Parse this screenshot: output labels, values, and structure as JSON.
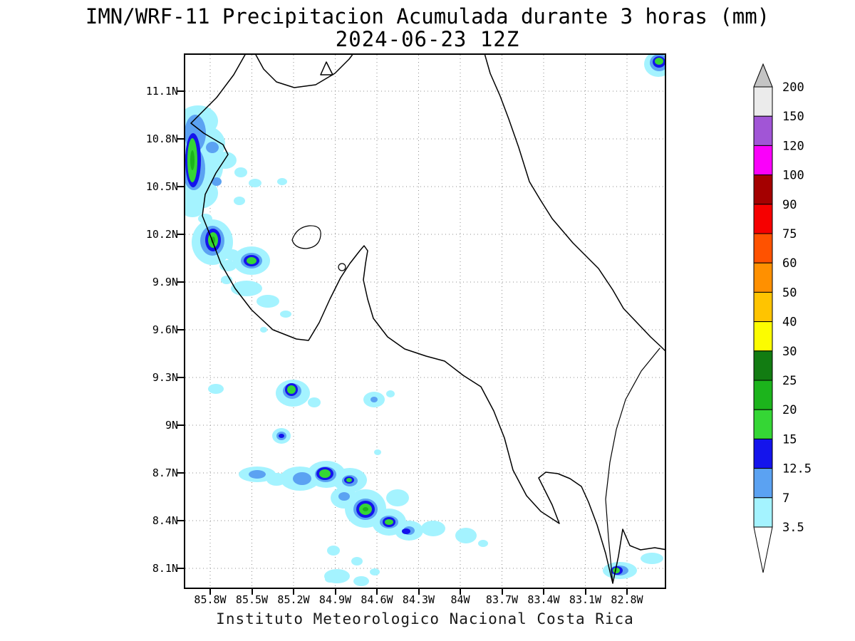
{
  "title": {
    "line1": "IMN/WRF-11 Precipitacion Acumulada durante 3 horas (mm)",
    "line2": "2024-06-23 12Z"
  },
  "footer": "Instituto Meteorologico Nacional Costa Rica",
  "axes": {
    "lat_labels": [
      "11.1N",
      "10.8N",
      "10.5N",
      "10.2N",
      "9.9N",
      "9.6N",
      "9.3N",
      "9N",
      "8.7N",
      "8.4N",
      "8.1N"
    ],
    "lon_labels": [
      "85.8W",
      "85.5W",
      "85.2W",
      "84.9W",
      "84.6W",
      "84.3W",
      "84W",
      "83.7W",
      "83.4W",
      "83.1W",
      "82.8W"
    ]
  },
  "colorbar": {
    "labels": [
      "200",
      "150",
      "120",
      "100",
      "90",
      "75",
      "60",
      "50",
      "40",
      "30",
      "25",
      "20",
      "15",
      "12.5",
      "7",
      "3.5"
    ],
    "cell_colors_top_to_bottom": [
      "#ebebeb",
      "#a155d6",
      "#fa00fa",
      "#a40000",
      "#f60000",
      "#ff5200",
      "#ff9000",
      "#ffc400",
      "#fcfc00",
      "#127c12",
      "#1cb41c",
      "#35d635",
      "#1414ec",
      "#5ba2f2",
      "#a4f3ff"
    ],
    "arrow_above_color": "#c4c4c4",
    "arrow_below_color": "#ffffff"
  },
  "map_colors": {
    "rain_3_5_mm": "#a4f3ff",
    "rain_7_mm": "#5ba2f2",
    "rain_12_5_mm": "#1414ec",
    "rain_15_mm": "#35d635",
    "rain_20_mm": "#1cb41c",
    "coastline": "#000000",
    "gridline": "#8c8c8c"
  },
  "precip_ellipses": {
    "mm_3_5": [
      [
        666,
        15,
        20,
        18
      ],
      [
        20,
        95,
        28,
        22
      ],
      [
        28,
        127,
        30,
        26
      ],
      [
        25,
        160,
        30,
        30
      ],
      [
        22,
        196,
        26,
        22
      ],
      [
        12,
        218,
        16,
        12
      ],
      [
        58,
        150,
        16,
        12
      ],
      [
        80,
        167,
        9,
        7
      ],
      [
        100,
        182,
        9,
        6
      ],
      [
        138,
        180,
        7,
        5
      ],
      [
        78,
        207,
        8,
        6
      ],
      [
        30,
        232,
        10,
        7
      ],
      [
        40,
        265,
        29,
        32
      ],
      [
        62,
        298,
        12,
        8
      ],
      [
        95,
        291,
        26,
        20
      ],
      [
        68,
        283,
        10,
        8
      ],
      [
        88,
        330,
        22,
        11
      ],
      [
        118,
        348,
        16,
        9
      ],
      [
        60,
        318,
        8,
        6
      ],
      [
        143,
        366,
        8,
        5
      ],
      [
        112,
        388,
        5,
        4
      ],
      [
        45,
        471,
        11,
        7
      ],
      [
        153,
        477,
        24,
        19
      ],
      [
        183,
        490,
        9,
        7
      ],
      [
        267,
        486,
        15,
        11
      ],
      [
        290,
        478,
        6,
        5
      ],
      [
        137,
        537,
        13,
        11
      ],
      [
        272,
        560,
        5,
        4
      ],
      [
        103,
        591,
        26,
        11
      ],
      [
        130,
        598,
        14,
        9
      ],
      [
        163,
        597,
        28,
        17
      ],
      [
        200,
        591,
        27,
        19
      ],
      [
        233,
        599,
        24,
        17
      ],
      [
        225,
        624,
        19,
        15
      ],
      [
        255,
        639,
        29,
        27
      ],
      [
        288,
        658,
        24,
        19
      ],
      [
        316,
        670,
        20,
        14
      ],
      [
        350,
        667,
        17,
        11
      ],
      [
        396,
        677,
        15,
        11
      ],
      [
        300,
        624,
        16,
        12
      ],
      [
        210,
        698,
        9,
        7
      ],
      [
        243,
        713,
        8,
        6
      ],
      [
        268,
        728,
        7,
        5
      ],
      [
        205,
        738,
        7,
        5
      ],
      [
        420,
        688,
        7,
        5
      ],
      [
        215,
        734,
        18,
        10
      ],
      [
        249,
        741,
        11,
        7
      ],
      [
        612,
        726,
        24,
        12
      ],
      [
        657,
        709,
        16,
        8
      ]
    ],
    "mm_7": [
      [
        667,
        13,
        13,
        12
      ],
      [
        16,
        112,
        15,
        26
      ],
      [
        14,
        162,
        16,
        30
      ],
      [
        40,
        132,
        9,
        8
      ],
      [
        46,
        180,
        7,
        6
      ],
      [
        40,
        263,
        17,
        21
      ],
      [
        95,
        291,
        15,
        11
      ],
      [
        152,
        474,
        13,
        11
      ],
      [
        137,
        537,
        7,
        6
      ],
      [
        267,
        486,
        5,
        4
      ],
      [
        103,
        591,
        12,
        6
      ],
      [
        166,
        597,
        13,
        9
      ],
      [
        199,
        591,
        15,
        11
      ],
      [
        233,
        600,
        11,
        8
      ],
      [
        225,
        622,
        8,
        6
      ],
      [
        255,
        640,
        17,
        15
      ],
      [
        288,
        658,
        13,
        9
      ],
      [
        316,
        670,
        8,
        6
      ],
      [
        611,
        726,
        13,
        7
      ]
    ],
    "mm_12_5": [
      [
        667,
        12,
        9,
        8
      ],
      [
        13,
        150,
        11,
        38
      ],
      [
        41,
        262,
        11,
        16
      ],
      [
        95,
        291,
        11,
        8
      ],
      [
        151,
        472,
        9,
        9
      ],
      [
        137,
        537,
        4,
        3
      ],
      [
        198,
        590,
        12,
        9
      ],
      [
        255,
        640,
        13,
        12
      ],
      [
        288,
        658,
        9,
        7
      ],
      [
        232,
        599,
        7,
        5
      ],
      [
        312,
        671,
        6,
        4
      ],
      [
        608,
        726,
        8,
        6
      ]
    ],
    "mm_15": [
      [
        667,
        11,
        6,
        5
      ],
      [
        12,
        150,
        7,
        31
      ],
      [
        41,
        262,
        7,
        11
      ],
      [
        95,
        291,
        7,
        5
      ],
      [
        151,
        472,
        6,
        6
      ],
      [
        198,
        590,
        8,
        6
      ],
      [
        255,
        640,
        9,
        8
      ],
      [
        288,
        658,
        6,
        4
      ],
      [
        232,
        599,
        4,
        3
      ],
      [
        607,
        726,
        5,
        4
      ]
    ],
    "mm_20": [
      [
        12,
        150,
        3,
        14
      ],
      [
        41,
        262,
        3,
        5
      ],
      [
        255,
        640,
        4,
        3
      ]
    ]
  },
  "chart_data": {
    "type": "heatmap",
    "title": "IMN/WRF-11 Precipitacion Acumulada durante 3 horas (mm)",
    "subtitle": "2024-06-23 12Z",
    "x_ticks": [
      "85.8W",
      "85.5W",
      "85.2W",
      "84.9W",
      "84.6W",
      "84.3W",
      "84W",
      "83.7W",
      "83.4W",
      "83.1W",
      "82.8W"
    ],
    "y_ticks": [
      "11.1N",
      "10.8N",
      "10.5N",
      "10.2N",
      "9.9N",
      "9.6N",
      "9.3N",
      "9N",
      "8.7N",
      "8.4N",
      "8.1N"
    ],
    "legend_levels_mm": [
      3.5,
      7,
      12.5,
      15,
      20,
      25,
      30,
      40,
      50,
      60,
      75,
      90,
      100,
      120,
      150,
      200
    ],
    "legend_position": "right",
    "grid": "dotted",
    "notes": "Shaded 3-h precipitation over Costa Rica: maxima 15-25 mm along the Guanacaste/Nicoya coast (10.0-10.8N, 85.5-86W) and the SW Pacific slope (8.2-9.3N, 84.2-85.3W); light cells near the Caribbean top-right corner and the far south near 8.1N."
  }
}
